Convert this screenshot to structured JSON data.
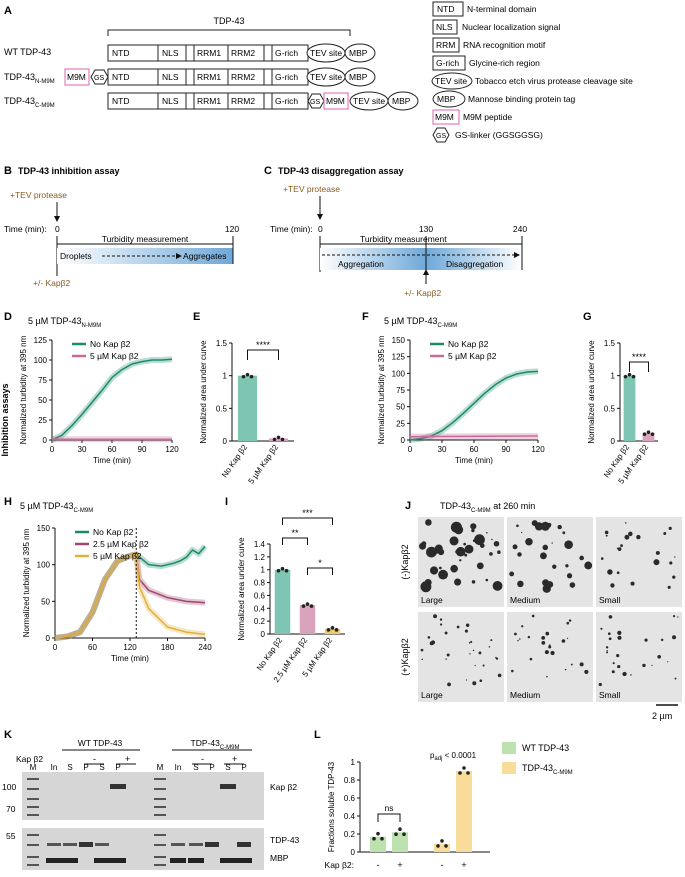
{
  "panels": {
    "A": "A",
    "B": "B",
    "C": "C",
    "D": "D",
    "E": "E",
    "F": "F",
    "G": "G",
    "H": "H",
    "I": "I",
    "J": "J",
    "K": "K",
    "L": "L"
  },
  "panelA": {
    "tdp_label": "TDP-43",
    "constructs": [
      "WT TDP-43",
      "TDP-43",
      "TDP-43"
    ],
    "construct_subs": [
      "",
      "N-M9M",
      "C-M9M"
    ],
    "domains": {
      "NTD": "NTD",
      "NLS": "NLS",
      "RRM1": "RRM1",
      "RRM2": "RRM2",
      "Grich": "G-rich",
      "TEV": "TEV site",
      "MBP": "MBP",
      "M9M": "M9M",
      "GS": "GS"
    },
    "legend": [
      {
        "key": "NTD",
        "text": "N-terminal domain"
      },
      {
        "key": "NLS",
        "text": "Nuclear localization signal"
      },
      {
        "key": "RRM",
        "text": "RNA recognition motif"
      },
      {
        "key": "G-rich",
        "text": "Glycine-rich region"
      },
      {
        "key": "TEV site",
        "text": "Tobacco etch virus protease cleavage site"
      },
      {
        "key": "MBP",
        "text": "Mannose binding protein tag"
      },
      {
        "key": "M9M",
        "text": "M9M peptide"
      },
      {
        "key": "GS",
        "text": "GS-linker (GGSGGSG)"
      }
    ]
  },
  "panelB": {
    "title": "TDP-43 inhibition assay",
    "tev": "+TEV protease",
    "time_label": "Time (min):",
    "t0": "0",
    "t120": "120",
    "turbidity": "Turbidity measurement",
    "droplets": "Droplets",
    "aggregates": "Aggregates",
    "kap": "+/- Kapβ2"
  },
  "panelC": {
    "title": "TDP-43 disaggregation assay",
    "tev": "+TEV protease",
    "time_label": "Time (min):",
    "t0": "0",
    "t130": "130",
    "t240": "240",
    "turbidity": "Turbidity measurement",
    "aggregation": "Aggregation",
    "disaggregation": "Disaggregation",
    "kap": "+/- Kapβ2"
  },
  "side_label": "Inhibition assays",
  "panelD": {
    "title": "5 µM TDP-43",
    "title_sub": "N-M9M",
    "ylabel": "Normalized turbidity at 395 nm",
    "xlabel": "Time (min)",
    "legend": [
      "No Kap β2",
      "5 µM Kap β2"
    ]
  },
  "panelF": {
    "title": "5 µM TDP-43",
    "title_sub": "C-M9M",
    "ylabel": "Normalized turbidity at 395 nm",
    "xlabel": "Time (min)",
    "legend": [
      "No Kap β2",
      "5 µM Kap β2"
    ]
  },
  "panelH": {
    "title": "5 µM TDP-43",
    "title_sub": "C-M9M",
    "ylabel": "Normalized turbidity at 395 nm",
    "xlabel": "Time (min)",
    "legend": [
      "No Kap β2",
      "2.5 µM Kap β2",
      "5 µM Kap β2"
    ]
  },
  "panelE": {
    "ylabel": "Normalized area under curve",
    "sig": "****"
  },
  "panelG": {
    "ylabel": "Normalized area under curve",
    "sig": "****"
  },
  "panelI": {
    "ylabel": "Normalized area under curve",
    "sig": [
      "***",
      "**",
      "*"
    ]
  },
  "panelJ": {
    "title": "TDP-43",
    "title_sub": "C-M9M",
    "title_rest": " at 260 min",
    "rows": [
      "(-)Kapβ2",
      "(+)Kapβ2"
    ],
    "cols": [
      "Large",
      "Medium",
      "Small"
    ],
    "scale": "2 µm"
  },
  "panelK": {
    "wt": "WT TDP-43",
    "cm": "TDP-43",
    "cm_sub": "C-M9M",
    "kap": "Kap β2",
    "minus": "-",
    "plus": "+",
    "lanes": [
      "M",
      "In",
      "S",
      "P",
      "S",
      "P",
      "M",
      "In",
      "S",
      "P",
      "S",
      "P"
    ],
    "mw_top": [
      "100",
      "70"
    ],
    "mw_bot": [
      "55"
    ],
    "band_labels": [
      "Kap β2",
      "TDP-43",
      "MBP"
    ]
  },
  "panelL": {
    "ylabel": "Fractions soluble TDP-43",
    "ns": "ns",
    "padj": "p",
    "padj_sub": "adj",
    "padj_rest": " < 0.0001",
    "legend": [
      "WT TDP-43",
      "TDP-43"
    ],
    "legend_sub": "C-M9M",
    "kap": "Kap β2:",
    "signs": [
      "-",
      "+",
      "-",
      "+"
    ]
  },
  "chart_data": [
    {
      "type": "line",
      "id": "D",
      "x_range": [
        0,
        120
      ],
      "ylim": [
        0,
        125
      ],
      "xticks": [
        0,
        30,
        60,
        90,
        120
      ],
      "yticks": [
        0,
        25,
        50,
        75,
        100,
        125
      ],
      "series": [
        {
          "name": "No Kap β2",
          "color": "#1b8a6b",
          "x": [
            0,
            10,
            20,
            30,
            40,
            50,
            60,
            70,
            80,
            90,
            100,
            110,
            120
          ],
          "y": [
            0,
            6,
            18,
            32,
            47,
            62,
            78,
            88,
            95,
            98,
            100,
            100,
            101
          ]
        },
        {
          "name": "5 µM Kap β2",
          "color": "#c86b98",
          "x": [
            0,
            120
          ],
          "y": [
            1,
            1
          ]
        }
      ]
    },
    {
      "type": "bar",
      "id": "E",
      "categories": [
        "No Kap β2",
        "5 µM Kap β2"
      ],
      "values": [
        1.0,
        0.04
      ],
      "ylim": [
        0,
        1.5
      ],
      "yticks": [
        0,
        0.5,
        1.0,
        1.5
      ],
      "colors": [
        "#7fc5b3",
        "#d9a3bd"
      ]
    },
    {
      "type": "line",
      "id": "F",
      "x_range": [
        0,
        120
      ],
      "ylim": [
        0,
        150
      ],
      "xticks": [
        0,
        30,
        60,
        90,
        120
      ],
      "yticks": [
        0,
        25,
        50,
        75,
        100,
        125,
        150
      ],
      "series": [
        {
          "name": "No Kap β2",
          "color": "#1b8a6b",
          "x": [
            0,
            10,
            20,
            30,
            40,
            50,
            60,
            70,
            80,
            90,
            100,
            110,
            120
          ],
          "y": [
            0,
            2,
            6,
            14,
            26,
            40,
            55,
            70,
            83,
            93,
            99,
            102,
            103
          ]
        },
        {
          "name": "5 µM Kap β2",
          "color": "#c86b98",
          "x": [
            0,
            120
          ],
          "y": [
            5,
            6
          ]
        }
      ]
    },
    {
      "type": "bar",
      "id": "G",
      "categories": [
        "No Kap β2",
        "5 µM Kap β2"
      ],
      "values": [
        1.0,
        0.12
      ],
      "ylim": [
        0,
        1.5
      ],
      "yticks": [
        0,
        0.5,
        1.0,
        1.5
      ],
      "colors": [
        "#7fc5b3",
        "#d9a3bd"
      ]
    },
    {
      "type": "line",
      "id": "H",
      "x_range": [
        0,
        240
      ],
      "ylim": [
        0,
        150
      ],
      "xticks": [
        0,
        60,
        120,
        180,
        240
      ],
      "yticks": [
        0,
        50,
        100,
        150
      ],
      "series": [
        {
          "name": "No Kap β2",
          "color": "#1b8a6b",
          "x": [
            0,
            20,
            40,
            60,
            80,
            100,
            120,
            130,
            150,
            170,
            190,
            200,
            210,
            220,
            230,
            240
          ],
          "y": [
            0,
            2,
            8,
            35,
            80,
            105,
            112,
            114,
            100,
            98,
            102,
            105,
            110,
            120,
            115,
            125
          ]
        },
        {
          "name": "2.5 µM Kap β2",
          "color": "#a0466f",
          "x": [
            0,
            20,
            40,
            60,
            80,
            100,
            120,
            130,
            135,
            150,
            180,
            210,
            240
          ],
          "y": [
            0,
            2,
            8,
            35,
            80,
            105,
            112,
            114,
            80,
            65,
            55,
            50,
            48
          ]
        },
        {
          "name": "5 µM Kap β2",
          "color": "#e0b23a",
          "x": [
            0,
            20,
            40,
            60,
            80,
            100,
            120,
            130,
            135,
            150,
            180,
            210,
            240
          ],
          "y": [
            0,
            2,
            8,
            35,
            80,
            105,
            112,
            114,
            70,
            40,
            15,
            8,
            5
          ]
        }
      ]
    },
    {
      "type": "bar",
      "id": "I",
      "categories": [
        "No Kap β2",
        "2.5 µM Kap β2",
        "5 µM Kap β2"
      ],
      "values": [
        1.0,
        0.45,
        0.08
      ],
      "ylim": [
        0,
        1.4
      ],
      "yticks": [
        0,
        0.2,
        0.4,
        0.6,
        0.8,
        1.0,
        1.2,
        1.4
      ],
      "colors": [
        "#7fc5b3",
        "#d9a3bd",
        "#f0c96a"
      ]
    },
    {
      "type": "bar",
      "id": "L",
      "categories": [
        "WT -",
        "WT +",
        "C-M9M -",
        "C-M9M +"
      ],
      "values": [
        0.17,
        0.22,
        0.09,
        0.9
      ],
      "ylim": [
        0,
        1.0
      ],
      "yticks": [
        0,
        0.2,
        0.4,
        0.6,
        0.8,
        1.0
      ],
      "colors": [
        "#bde2b0",
        "#bde2b0",
        "#f7dc9a",
        "#f7dc9a"
      ]
    }
  ]
}
